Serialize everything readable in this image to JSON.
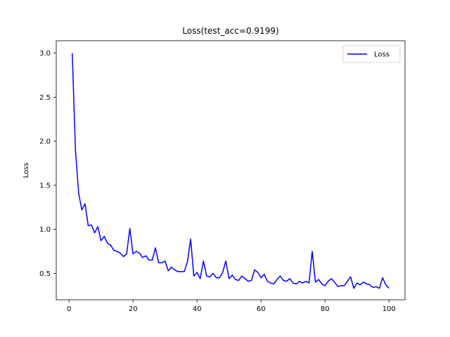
{
  "chart_data": {
    "type": "line",
    "title": "Loss(test_acc=0.9199)",
    "xlabel": "",
    "ylabel": "Loss",
    "xlim": [
      -4,
      105
    ],
    "ylim": [
      0.2,
      3.14
    ],
    "xticks": [
      0,
      20,
      40,
      60,
      80,
      100
    ],
    "yticks": [
      0.5,
      1.0,
      1.5,
      2.0,
      2.5,
      3.0
    ],
    "xtick_labels": [
      "0",
      "20",
      "40",
      "60",
      "80",
      "100"
    ],
    "ytick_labels": [
      "0.5",
      "1.0",
      "1.5",
      "2.0",
      "2.5",
      "3.0"
    ],
    "grid": false,
    "legend_position": "top-right",
    "series": [
      {
        "name": "Loss",
        "color": "#0000ff",
        "x": [
          1,
          2,
          3,
          4,
          5,
          6,
          7,
          8,
          9,
          10,
          11,
          12,
          13,
          14,
          15,
          16,
          17,
          18,
          19,
          20,
          21,
          22,
          23,
          24,
          25,
          26,
          27,
          28,
          29,
          30,
          31,
          32,
          33,
          34,
          35,
          36,
          37,
          38,
          39,
          40,
          41,
          42,
          43,
          44,
          45,
          46,
          47,
          48,
          49,
          50,
          51,
          52,
          53,
          54,
          55,
          56,
          57,
          58,
          59,
          60,
          61,
          62,
          63,
          64,
          65,
          66,
          67,
          68,
          69,
          70,
          71,
          72,
          73,
          74,
          75,
          76,
          77,
          78,
          79,
          80,
          81,
          82,
          83,
          84,
          85,
          86,
          87,
          88,
          89,
          90,
          91,
          92,
          93,
          94,
          95,
          96,
          97,
          98,
          99,
          100
        ],
        "values": [
          3.0,
          1.9,
          1.41,
          1.22,
          1.29,
          1.04,
          1.05,
          0.96,
          1.03,
          0.87,
          0.92,
          0.84,
          0.82,
          0.76,
          0.75,
          0.73,
          0.69,
          0.72,
          1.01,
          0.72,
          0.75,
          0.73,
          0.68,
          0.7,
          0.65,
          0.65,
          0.79,
          0.62,
          0.62,
          0.64,
          0.53,
          0.57,
          0.54,
          0.52,
          0.52,
          0.52,
          0.63,
          0.89,
          0.47,
          0.51,
          0.44,
          0.64,
          0.47,
          0.46,
          0.5,
          0.45,
          0.45,
          0.51,
          0.64,
          0.44,
          0.48,
          0.43,
          0.42,
          0.47,
          0.44,
          0.41,
          0.42,
          0.54,
          0.51,
          0.45,
          0.49,
          0.41,
          0.39,
          0.38,
          0.43,
          0.47,
          0.42,
          0.41,
          0.44,
          0.39,
          0.38,
          0.41,
          0.39,
          0.41,
          0.39,
          0.75,
          0.4,
          0.43,
          0.38,
          0.36,
          0.41,
          0.44,
          0.4,
          0.35,
          0.36,
          0.36,
          0.41,
          0.46,
          0.33,
          0.39,
          0.37,
          0.4,
          0.38,
          0.37,
          0.34,
          0.35,
          0.33,
          0.45,
          0.37,
          0.33
        ]
      }
    ]
  }
}
